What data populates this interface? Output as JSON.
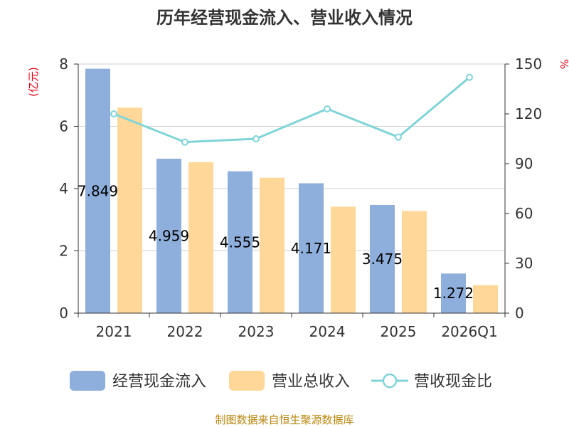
{
  "chart_data": {
    "type": "bar",
    "title": "历年经营现金流入、营业收入情况",
    "categories": [
      "2021",
      "2022",
      "2023",
      "2024",
      "2025",
      "2026Q1"
    ],
    "series": [
      {
        "name": "经营现金流入",
        "type": "bar",
        "axis": "left",
        "color": "#8eaedb",
        "values": [
          7.849,
          4.959,
          4.555,
          4.171,
          3.475,
          1.272
        ],
        "labels": [
          "7.849",
          "4.959",
          "4.555",
          "4.171",
          "3.475",
          "1.272"
        ]
      },
      {
        "name": "营业总收入",
        "type": "bar",
        "axis": "left",
        "color": "#ffd899",
        "values": [
          6.6,
          4.85,
          4.35,
          3.42,
          3.28,
          0.9
        ]
      },
      {
        "name": "营收现金比",
        "type": "line",
        "axis": "right",
        "color": "#7fd4d8",
        "values": [
          120,
          103,
          105,
          123,
          106,
          142
        ]
      }
    ],
    "y_left": {
      "unit": "(亿元)",
      "ylim": [
        0,
        8
      ],
      "ticks": [
        "0",
        "2",
        "4",
        "6",
        "8"
      ]
    },
    "y_right": {
      "unit": "%",
      "ylim": [
        0,
        150
      ],
      "ticks": [
        "0",
        "30",
        "60",
        "90",
        "120",
        "150"
      ]
    },
    "grid": true,
    "legend_position": "bottom"
  },
  "source": "制图数据来自恒生聚源数据库"
}
